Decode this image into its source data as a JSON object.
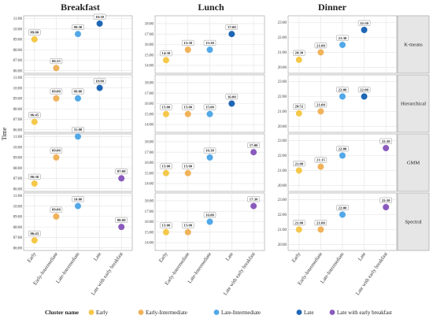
{
  "chart_data": {
    "type": "scatter",
    "facet_columns": [
      "Breakfast",
      "Lunch",
      "Dinner"
    ],
    "facet_rows": [
      "K-means",
      "Hierarchical",
      "GMM",
      "Spectral"
    ],
    "categories": [
      "Early",
      "Early-Intermediate",
      "Late-Intermediate",
      "Late",
      "Late with early breakfast"
    ],
    "ylabel": "Time",
    "legend": {
      "title": "Cluster name",
      "position": "bottom",
      "entries": [
        {
          "name": "Early",
          "color": "#f5c84a"
        },
        {
          "name": "Early-Intermediate",
          "color": "#f0b25a"
        },
        {
          "name": "Late-Intermediate",
          "color": "#52a8e8"
        },
        {
          "name": "Late",
          "color": "#1f67b5"
        },
        {
          "name": "Late with early breakfast",
          "color": "#8a5bbd"
        }
      ]
    },
    "grid": true,
    "axes": {
      "Breakfast": {
        "min": 5.75,
        "max": 11.25,
        "ticks": [
          "06:00",
          "07:00",
          "08:00",
          "09:00",
          "10:00",
          "11:00"
        ],
        "tick_values": [
          6,
          7,
          8,
          9,
          10,
          11
        ]
      },
      "Lunch": {
        "min": 13.25,
        "max": 18.75,
        "ticks": [
          "14:00",
          "15:00",
          "16:00",
          "17:00",
          "18:00"
        ],
        "tick_values": [
          14,
          15,
          16,
          17,
          18
        ]
      },
      "Dinner": {
        "min": 19.6,
        "max": 23.45,
        "ticks": [
          "20:00",
          "21:00",
          "22:00",
          "23:00"
        ],
        "tick_values": [
          20,
          21,
          22,
          23
        ]
      }
    },
    "panels": [
      {
        "row": "K-means",
        "col": "Breakfast",
        "points": [
          {
            "cat": 0,
            "y": 9.0,
            "label": "09:00"
          },
          {
            "cat": 1,
            "y": 6.25,
            "label": "06:15"
          },
          {
            "cat": 2,
            "y": 9.5,
            "label": "09:30"
          },
          {
            "cat": 3,
            "y": 10.5,
            "label": "10:30"
          }
        ]
      },
      {
        "row": "K-means",
        "col": "Lunch",
        "points": [
          {
            "cat": 0,
            "y": 14.5,
            "label": "14:30"
          },
          {
            "cat": 1,
            "y": 15.5,
            "label": "15:30"
          },
          {
            "cat": 2,
            "y": 15.5,
            "label": "15:30"
          },
          {
            "cat": 3,
            "y": 17.0,
            "label": "17:00"
          }
        ]
      },
      {
        "row": "K-means",
        "col": "Dinner",
        "points": [
          {
            "cat": 0,
            "y": 20.5,
            "label": "20:30"
          },
          {
            "cat": 1,
            "y": 21.0,
            "label": "21:00"
          },
          {
            "cat": 2,
            "y": 21.5,
            "label": "21:30"
          },
          {
            "cat": 3,
            "y": 22.5,
            "label": "22:30"
          }
        ]
      },
      {
        "row": "Hierarchical",
        "col": "Breakfast",
        "points": [
          {
            "cat": 0,
            "y": 6.75,
            "label": "06:45"
          },
          {
            "cat": 1,
            "y": 9.0,
            "label": "09:00"
          },
          {
            "cat": 2,
            "y": 9.0,
            "label": "09:00"
          },
          {
            "cat": 3,
            "y": 10.0,
            "label": "10:00"
          }
        ]
      },
      {
        "row": "Hierarchical",
        "col": "Lunch",
        "points": [
          {
            "cat": 0,
            "y": 15.0,
            "label": "15:00"
          },
          {
            "cat": 1,
            "y": 15.0,
            "label": "15:00"
          },
          {
            "cat": 2,
            "y": 15.0,
            "label": "15:00"
          },
          {
            "cat": 3,
            "y": 16.0,
            "label": "16:00"
          }
        ]
      },
      {
        "row": "Hierarchical",
        "col": "Dinner",
        "points": [
          {
            "cat": 0,
            "y": 20.87,
            "label": "20:52"
          },
          {
            "cat": 1,
            "y": 21.0,
            "label": "21:00"
          },
          {
            "cat": 2,
            "y": 22.0,
            "label": "22:00"
          },
          {
            "cat": 3,
            "y": 22.0,
            "label": "22:00"
          }
        ]
      },
      {
        "row": "GMM",
        "col": "Breakfast",
        "points": [
          {
            "cat": 0,
            "y": 6.5,
            "label": "06:30"
          },
          {
            "cat": 1,
            "y": 9.0,
            "label": "09:00"
          },
          {
            "cat": 2,
            "y": 11.0,
            "label": "11:00"
          },
          {
            "cat": 4,
            "y": 7.0,
            "label": "07:00"
          }
        ]
      },
      {
        "row": "GMM",
        "col": "Lunch",
        "points": [
          {
            "cat": 0,
            "y": 15.0,
            "label": "15:00"
          },
          {
            "cat": 1,
            "y": 15.0,
            "label": "15:00"
          },
          {
            "cat": 2,
            "y": 16.5,
            "label": "16:30"
          },
          {
            "cat": 4,
            "y": 17.0,
            "label": "17:00"
          }
        ]
      },
      {
        "row": "GMM",
        "col": "Dinner",
        "points": [
          {
            "cat": 0,
            "y": 21.0,
            "label": "21:00"
          },
          {
            "cat": 1,
            "y": 21.25,
            "label": "21:15"
          },
          {
            "cat": 2,
            "y": 22.0,
            "label": "22:00"
          },
          {
            "cat": 4,
            "y": 22.5,
            "label": "22:30"
          }
        ]
      },
      {
        "row": "Spectral",
        "col": "Breakfast",
        "points": [
          {
            "cat": 0,
            "y": 6.72,
            "label": "06:43"
          },
          {
            "cat": 1,
            "y": 9.0,
            "label": "09:00"
          },
          {
            "cat": 2,
            "y": 10.0,
            "label": "10:00"
          },
          {
            "cat": 4,
            "y": 8.0,
            "label": "08:00"
          }
        ]
      },
      {
        "row": "Spectral",
        "col": "Lunch",
        "points": [
          {
            "cat": 0,
            "y": 15.0,
            "label": "15:00"
          },
          {
            "cat": 1,
            "y": 15.0,
            "label": "15:00"
          },
          {
            "cat": 2,
            "y": 16.0,
            "label": "16:00"
          },
          {
            "cat": 4,
            "y": 17.5,
            "label": "17:30"
          }
        ]
      },
      {
        "row": "Spectral",
        "col": "Dinner",
        "points": [
          {
            "cat": 0,
            "y": 21.0,
            "label": "21:00"
          },
          {
            "cat": 1,
            "y": 21.0,
            "label": "21:00"
          },
          {
            "cat": 2,
            "y": 22.0,
            "label": "22:00"
          },
          {
            "cat": 4,
            "y": 22.5,
            "label": "22:30"
          }
        ]
      }
    ]
  }
}
